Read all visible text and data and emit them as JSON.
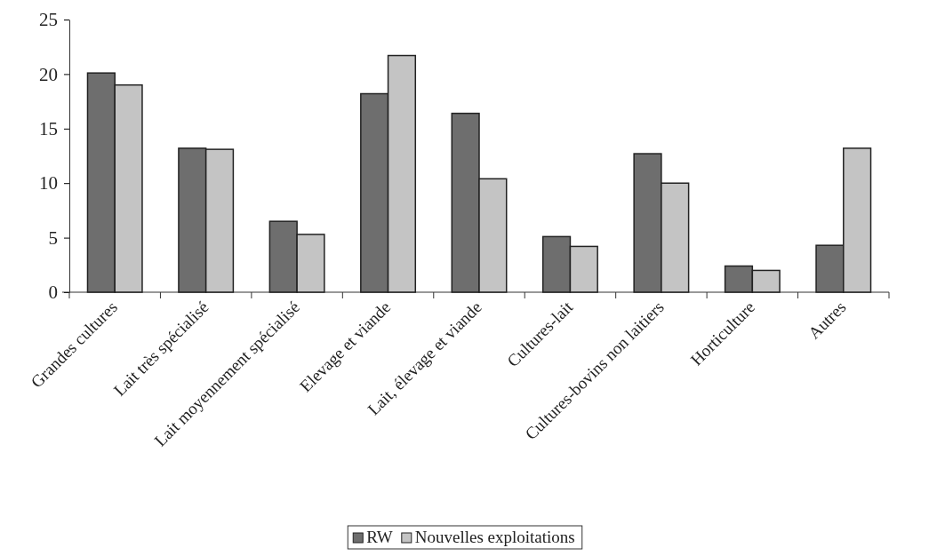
{
  "chart_data": {
    "type": "bar",
    "categories": [
      "Grandes cultures",
      "Lait très spécialisé",
      "Lait moyennement spécialisé",
      "Elevage et viande",
      "Lait, élevage et viande",
      "Cultures-lait",
      "Cultures-bovins non laitiers",
      "Horticulture",
      "Autres"
    ],
    "series": [
      {
        "name": "RW",
        "color": "#6e6e6e",
        "values": [
          20.1,
          13.2,
          6.5,
          18.2,
          16.4,
          5.1,
          12.7,
          2.4,
          4.3
        ]
      },
      {
        "name": "Nouvelles exploitations",
        "color": "#c4c4c4",
        "values": [
          19.0,
          13.1,
          5.3,
          21.7,
          10.4,
          4.2,
          10.0,
          2.0,
          13.2
        ]
      }
    ],
    "ylim": [
      0,
      25
    ],
    "yticks": [
      0,
      5,
      10,
      15,
      20,
      25
    ],
    "grid": false,
    "legend": "bottom"
  }
}
